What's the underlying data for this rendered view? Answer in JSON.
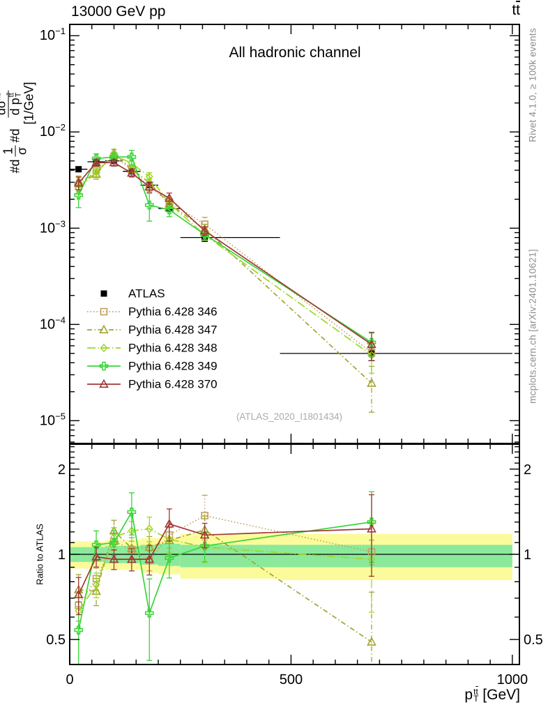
{
  "header": {
    "beam": "13000 GeV pp",
    "process_t1": "t",
    "process_t2": "t"
  },
  "panel_title": "All hadronic channel",
  "watermark": "(ATLAS_2020_I1801434)",
  "side_notes": {
    "top": "Rivet 4.1.0, ≥ 100k events",
    "bottom": "mcplots.cern.ch [arXiv:2401.10621]"
  },
  "ylabel": {
    "pre1": "#d",
    "f1num": "1",
    "f1den": "σ",
    "pre2": "#d",
    "f2num": "dσ",
    "f2sup": "nd",
    "f2den": "d p",
    "f2sub": "T",
    "f2sup2_t1": "t",
    "f2sup2_t2": "t",
    "units": "[1/GeV]"
  },
  "ratio_label": "Ratio to ATLAS",
  "xlabel": {
    "base": "p",
    "sub": "T",
    "sup_t1": "t",
    "sup_t2": "t",
    "units": "[GeV]"
  },
  "chart_data": {
    "type": "line",
    "title": "All hadronic channel",
    "xlabel": "p_T^ttbar [GeV]",
    "ylabel": "#d 1/sigma #d dsigma^nd / d p_T^ttbar [1/GeV]",
    "ylabel_ratio": "Ratio to ATLAS",
    "xlim": [
      0,
      1016
    ],
    "ylim_top": [
      5.8e-06,
      0.131
    ],
    "yscale_top": "log",
    "ylim_ratio": [
      0.408,
      2.45
    ],
    "yscale_ratio": "log",
    "grid": false,
    "legend_position": "inside-middle-left",
    "x_ticks": {
      "values": [
        0,
        500,
        1000
      ],
      "labels": [
        "0",
        "500",
        "1000"
      ],
      "minor_step": 50
    },
    "y_ticks_top": {
      "base": "10",
      "exponents": [
        "−1",
        "−2",
        "−3",
        "−4",
        "−5"
      ],
      "exponent_values": [
        -1,
        -2,
        -3,
        -4,
        -5
      ]
    },
    "y_ticks_ratio": {
      "values": [
        2,
        1,
        0.5
      ],
      "labels": [
        "2",
        "1",
        "0.5"
      ]
    },
    "bin_edges": [
      0,
      40,
      80,
      120,
      160,
      200,
      250,
      475,
      1000
    ],
    "x": [
      20,
      60,
      100,
      140,
      180,
      225,
      305,
      682
    ],
    "reference": {
      "name": "ATLAS",
      "color": "#000000",
      "marker": "filled-square",
      "values": [
        0.0041,
        0.0049,
        0.005,
        0.0039,
        0.0028,
        0.0016,
        0.0008,
        5e-05
      ],
      "rel_err": [
        0.06,
        0.04,
        0.04,
        0.05,
        0.06,
        0.07,
        0.09,
        0.16
      ]
    },
    "series": [
      {
        "name": "Pythia 6.428 346",
        "color": "#C1A05C",
        "marker": "open-square",
        "line": "dotted",
        "values": [
          0.00271,
          0.00402,
          0.00555,
          0.00406,
          0.00266,
          0.00187,
          0.0011,
          5.1e-05
        ],
        "ratio": [
          0.66,
          0.82,
          1.11,
          1.04,
          0.95,
          1.17,
          1.37,
          1.02
        ],
        "rel_err": [
          0.12,
          0.09,
          0.07,
          0.07,
          0.08,
          0.1,
          0.18,
          0.1
        ]
      },
      {
        "name": "Pythia 6.428 347",
        "color": "#A2A42E",
        "marker": "open-triangle",
        "line": "dashdot",
        "values": [
          0.00308,
          0.00363,
          0.00605,
          0.0041,
          0.00297,
          0.00179,
          0.00098,
          2.45e-05
        ],
        "ratio": [
          0.75,
          0.74,
          1.21,
          1.05,
          1.06,
          1.12,
          1.22,
          0.49
        ],
        "rel_err": [
          0.13,
          0.11,
          0.09,
          0.09,
          0.09,
          0.11,
          0.12,
          0.5
        ]
      },
      {
        "name": "Pythia 6.428 348",
        "color": "#9FD626",
        "marker": "open-diamond",
        "line": "longdashdot",
        "values": [
          0.00258,
          0.00382,
          0.00575,
          0.00472,
          0.00344,
          0.00181,
          0.00085,
          4.8e-05
        ],
        "ratio": [
          0.63,
          0.78,
          1.15,
          1.21,
          1.23,
          1.13,
          1.06,
          0.96
        ],
        "rel_err": [
          0.13,
          0.1,
          0.08,
          0.08,
          0.1,
          0.1,
          0.12,
          0.35
        ]
      },
      {
        "name": "Pythia 6.428 349",
        "color": "#37D537",
        "marker": "plus",
        "line": "solid",
        "values": [
          0.00221,
          0.00529,
          0.0055,
          0.0055,
          0.00174,
          0.00155,
          0.00086,
          6.5e-05
        ],
        "ratio": [
          0.54,
          1.08,
          1.1,
          1.41,
          0.62,
          0.97,
          1.07,
          1.3
        ],
        "rel_err": [
          0.26,
          0.12,
          0.1,
          0.17,
          0.32,
          0.15,
          0.12,
          0.28
        ]
      },
      {
        "name": "Pythia 6.428 370",
        "color": "#A23636",
        "marker": "open-triangle",
        "line": "solid",
        "values": [
          0.00295,
          0.0048,
          0.0048,
          0.00374,
          0.00269,
          0.00205,
          0.00094,
          6.2e-05
        ],
        "ratio": [
          0.72,
          0.98,
          0.96,
          0.96,
          0.96,
          1.28,
          1.17,
          1.23
        ],
        "rel_err": [
          0.15,
          0.08,
          0.08,
          0.09,
          0.12,
          0.13,
          0.1,
          0.32
        ]
      }
    ],
    "ratio_bands": {
      "yellow": {
        "color": "#FBFB9B",
        "lo": [
          0.89,
          0.89,
          0.88,
          0.88,
          0.86,
          0.85,
          0.82,
          0.81
        ],
        "hi": [
          1.11,
          1.11,
          1.12,
          1.12,
          1.14,
          1.15,
          1.18,
          1.18
        ]
      },
      "green": {
        "color": "#8BE99B",
        "lo": [
          0.94,
          0.94,
          0.93,
          0.93,
          0.92,
          0.91,
          0.9,
          0.9
        ],
        "hi": [
          1.06,
          1.06,
          1.07,
          1.07,
          1.08,
          1.09,
          1.08,
          1.08
        ]
      }
    }
  }
}
